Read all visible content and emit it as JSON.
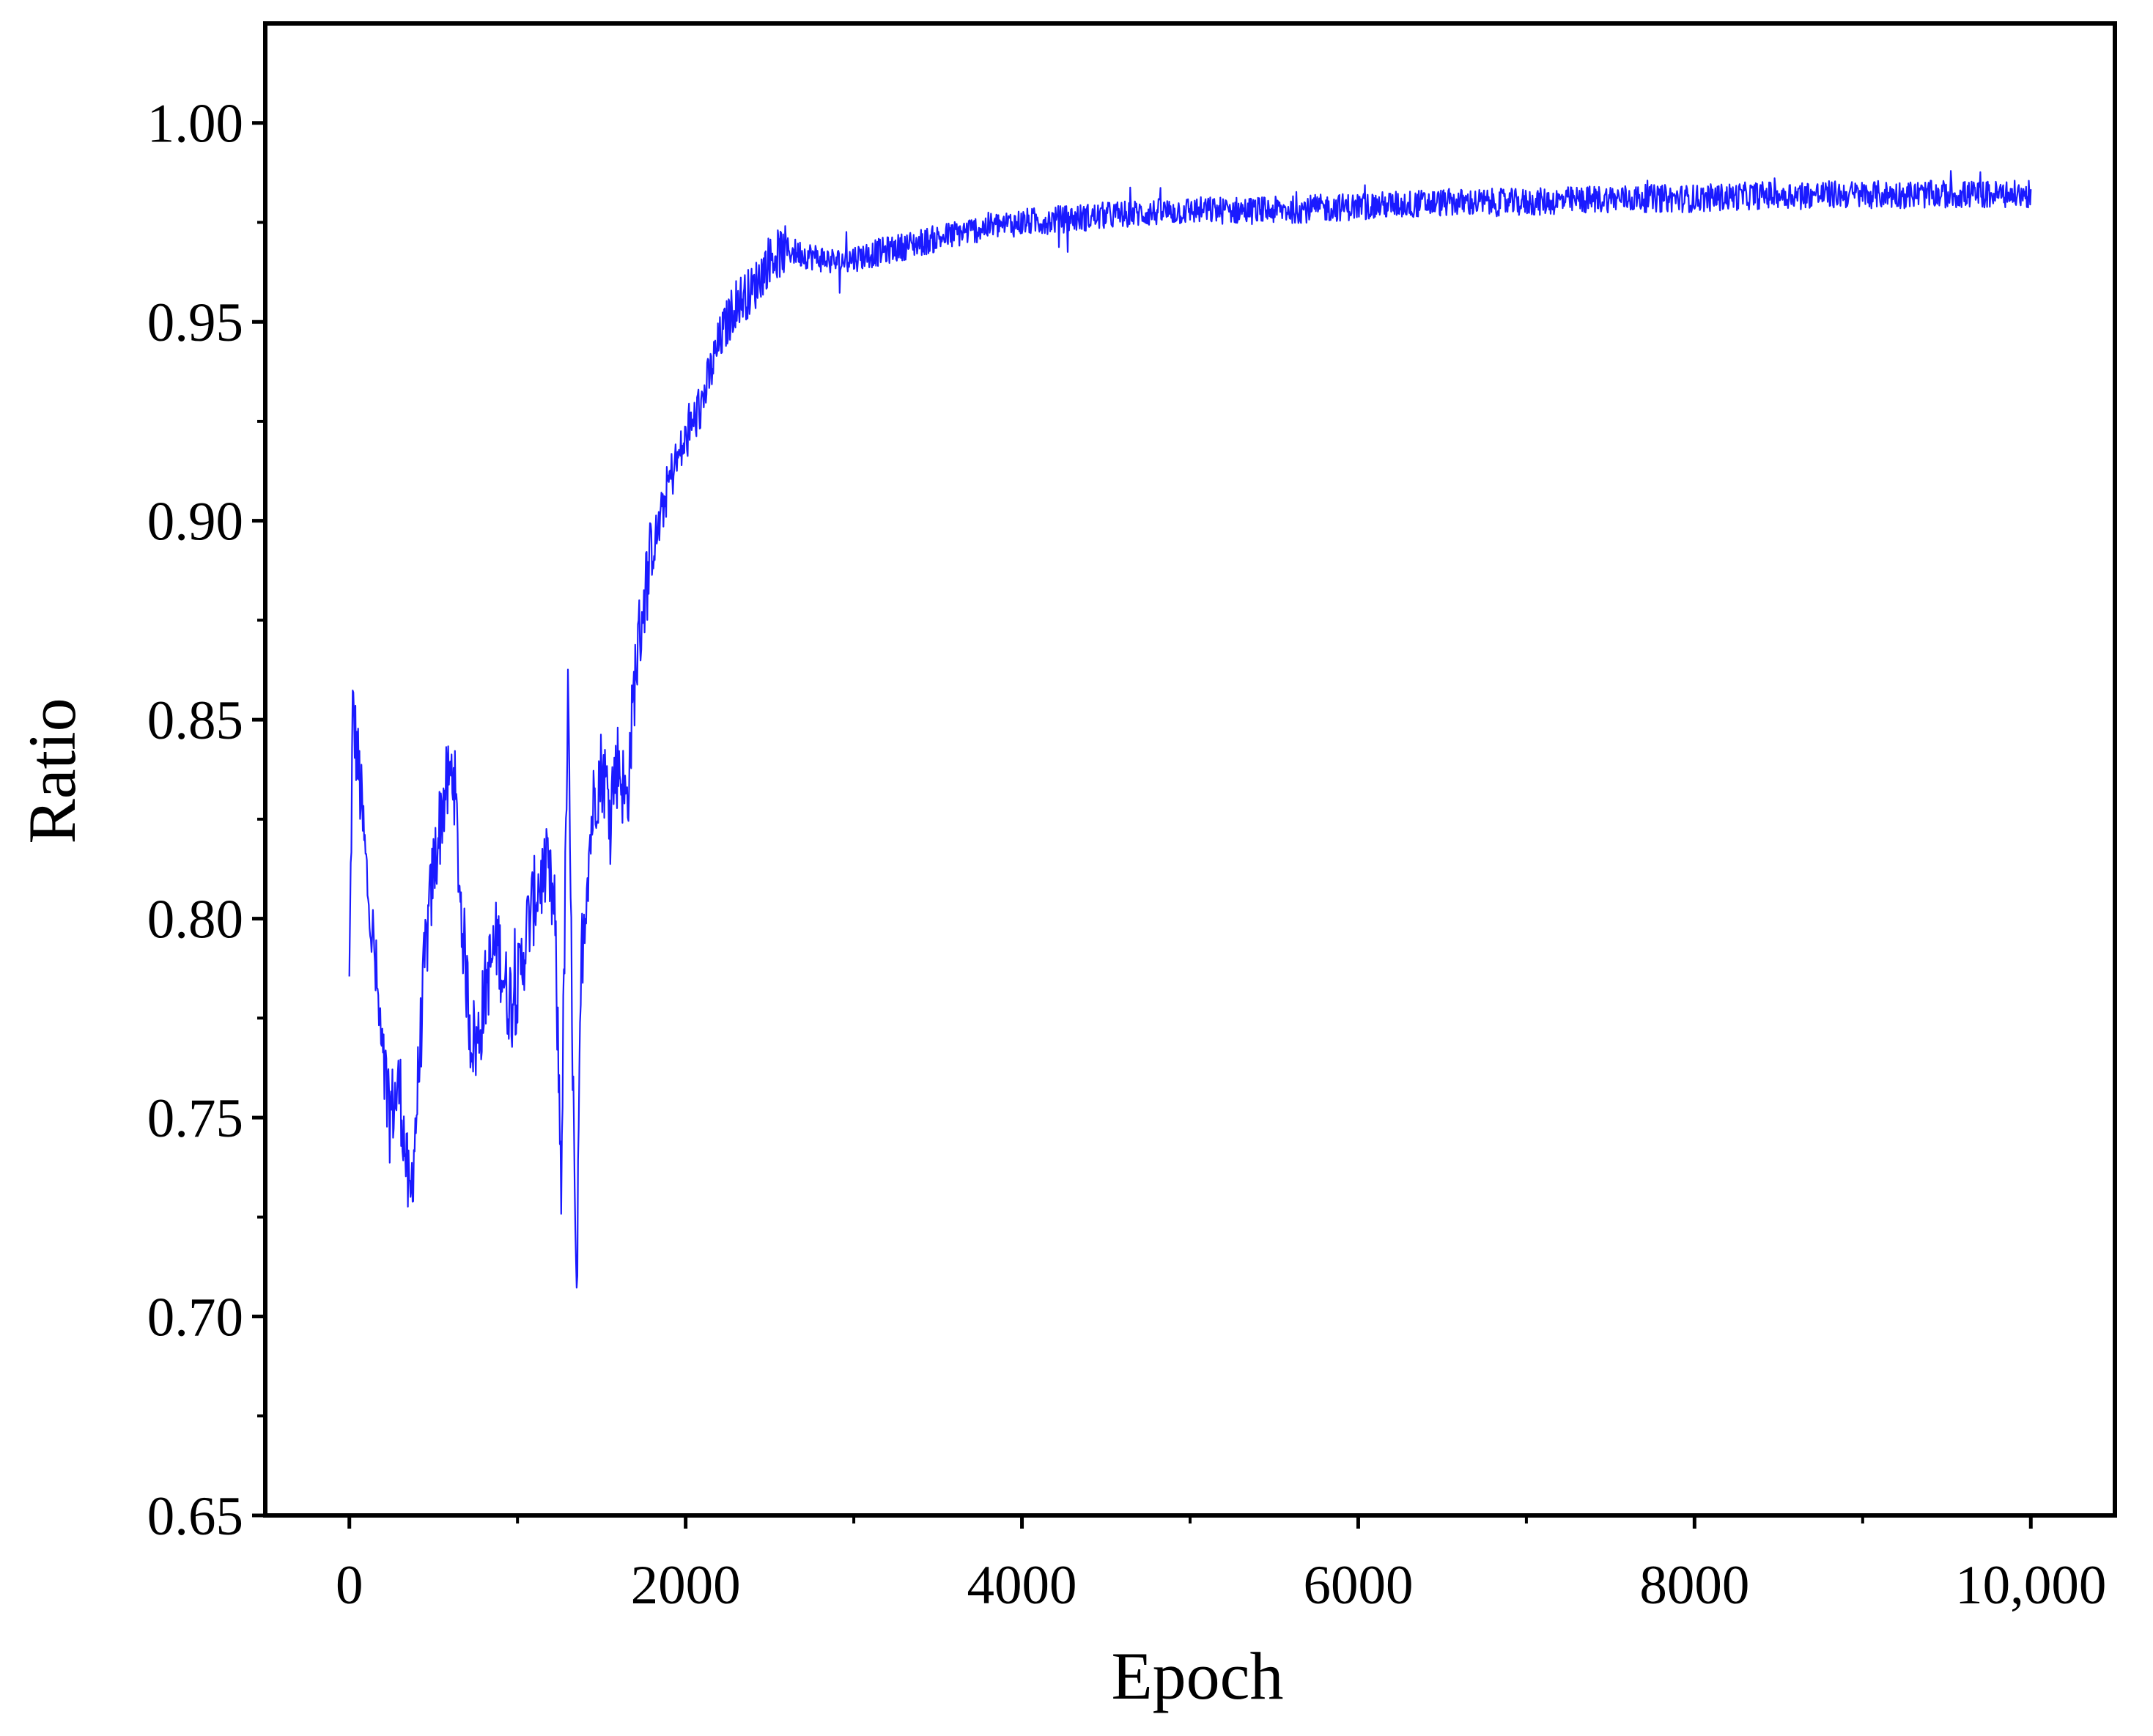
{
  "chart_data": {
    "type": "line",
    "title": "",
    "xlabel": "Epoch",
    "ylabel": "Ratio",
    "xlim": [
      -500,
      10500
    ],
    "ylim": [
      0.65,
      1.025
    ],
    "x_ticks": [
      0,
      2000,
      4000,
      6000,
      8000,
      10000
    ],
    "x_tick_labels": [
      "0",
      "2000",
      "4000",
      "6000",
      "8000",
      "10,000"
    ],
    "y_ticks": [
      0.65,
      0.7,
      0.75,
      0.8,
      0.85,
      0.9,
      0.95,
      1.0
    ],
    "y_tick_labels": [
      "0.65",
      "0.70",
      "0.75",
      "0.80",
      "0.85",
      "0.90",
      "0.95",
      "1.00"
    ],
    "grid": false,
    "legend": "none",
    "series": [
      {
        "color": "#1a1aff",
        "noise": 0.0035,
        "x": [
          0,
          20,
          60,
          100,
          150,
          200,
          250,
          300,
          360,
          400,
          450,
          500,
          560,
          620,
          660,
          720,
          760,
          820,
          880,
          940,
          1000,
          1060,
          1120,
          1170,
          1220,
          1260,
          1300,
          1330,
          1350,
          1380,
          1420,
          1460,
          1500,
          1550,
          1600,
          1650,
          1700,
          1750,
          1800,
          1850,
          1900,
          2000,
          2100,
          2200,
          2300,
          2400,
          2500,
          2600,
          2700,
          2800,
          2900,
          3000,
          3200,
          3400,
          3600,
          3800,
          4000,
          4300,
          4600,
          5000,
          5500,
          6000,
          6500,
          7000,
          7500,
          8000,
          8500,
          9000,
          9500,
          10000
        ],
        "y": [
          0.782,
          0.852,
          0.835,
          0.812,
          0.79,
          0.762,
          0.752,
          0.758,
          0.727,
          0.752,
          0.79,
          0.812,
          0.83,
          0.838,
          0.805,
          0.772,
          0.768,
          0.785,
          0.795,
          0.78,
          0.782,
          0.798,
          0.808,
          0.812,
          0.802,
          0.735,
          0.855,
          0.76,
          0.698,
          0.79,
          0.815,
          0.832,
          0.838,
          0.83,
          0.84,
          0.828,
          0.862,
          0.88,
          0.892,
          0.9,
          0.91,
          0.92,
          0.93,
          0.945,
          0.955,
          0.958,
          0.966,
          0.968,
          0.967,
          0.966,
          0.965,
          0.966,
          0.968,
          0.97,
          0.972,
          0.974,
          0.975,
          0.976,
          0.977,
          0.978,
          0.978,
          0.979,
          0.98,
          0.98,
          0.981,
          0.981,
          0.982,
          0.982,
          0.982,
          0.982
        ]
      }
    ]
  }
}
